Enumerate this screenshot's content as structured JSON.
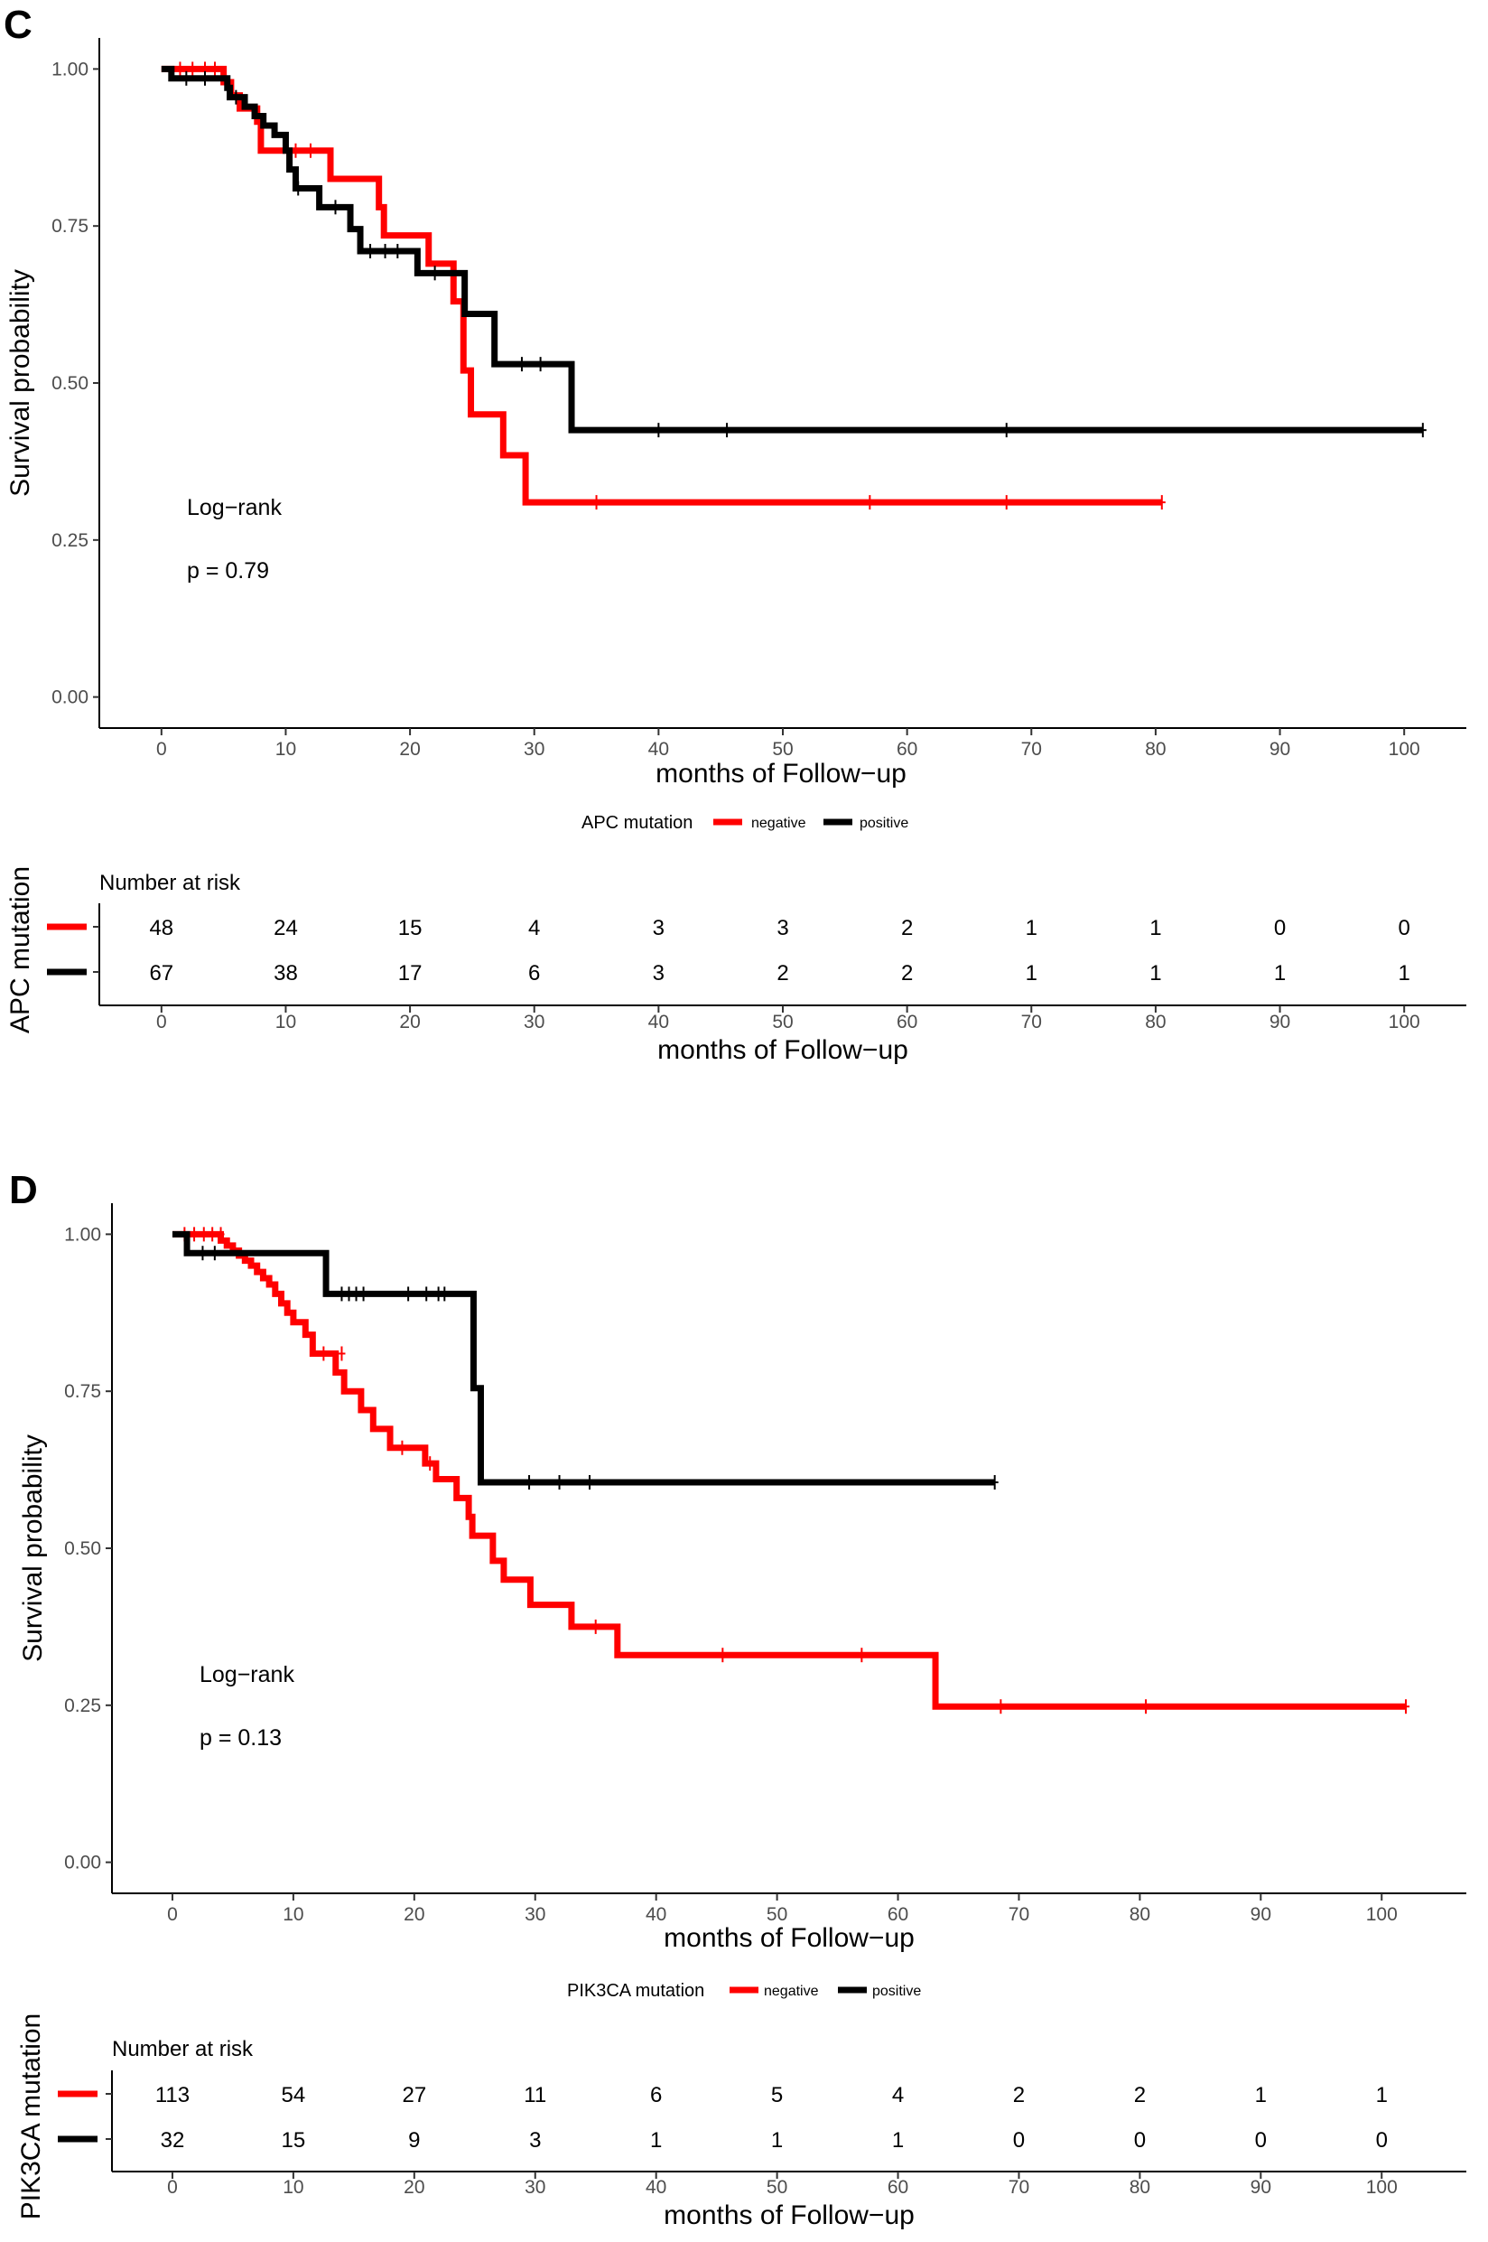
{
  "colors": {
    "negative": "#ff0000",
    "positive": "#000000",
    "axis": "#000000",
    "tick": "#4d4d4d"
  },
  "chart_data": [
    {
      "type": "line",
      "panel_label": "C",
      "ylabel": "Survival probability",
      "xlabel": "months of Follow−up",
      "xlim": [
        -5,
        105
      ],
      "ylim": [
        0,
        1
      ],
      "x_ticks": [
        "0",
        "10",
        "20",
        "30",
        "40",
        "50",
        "60",
        "70",
        "80",
        "90",
        "100"
      ],
      "y_ticks": [
        "0.00",
        "0.25",
        "0.50",
        "0.75",
        "1.00"
      ],
      "annotation": {
        "test": "Log−rank",
        "p": "p = 0.79"
      },
      "legend": {
        "title": "APC mutation",
        "items": [
          "negative",
          "positive"
        ]
      },
      "series": [
        {
          "name": "negative",
          "steps": [
            [
              0,
              1
            ],
            [
              5,
              0.979
            ],
            [
              5.6,
              0.958
            ],
            [
              6.3,
              0.937
            ],
            [
              7.7,
              0.916
            ],
            [
              8,
              0.87
            ],
            [
              13.6,
              0.825
            ],
            [
              17.5,
              0.78
            ],
            [
              17.9,
              0.735
            ],
            [
              21.5,
              0.69
            ],
            [
              23.5,
              0.63
            ],
            [
              24.3,
              0.52
            ],
            [
              24.9,
              0.45
            ],
            [
              27.5,
              0.385
            ],
            [
              29.3,
              0.31
            ],
            [
              80.5,
              0.31
            ]
          ],
          "censor": [
            [
              1.5,
              1
            ],
            [
              2.5,
              1
            ],
            [
              3.5,
              1
            ],
            [
              4.3,
              1
            ],
            [
              10.8,
              0.87
            ],
            [
              12,
              0.87
            ],
            [
              35,
              0.31
            ],
            [
              57,
              0.31
            ],
            [
              68,
              0.31
            ],
            [
              80.5,
              0.31
            ]
          ]
        },
        {
          "name": "positive",
          "steps": [
            [
              0,
              1
            ],
            [
              0.8,
              0.985
            ],
            [
              5.3,
              0.97
            ],
            [
              5.5,
              0.955
            ],
            [
              6.7,
              0.94
            ],
            [
              7.5,
              0.925
            ],
            [
              8.2,
              0.91
            ],
            [
              9.1,
              0.895
            ],
            [
              10,
              0.87
            ],
            [
              10.3,
              0.84
            ],
            [
              10.8,
              0.81
            ],
            [
              12.7,
              0.78
            ],
            [
              15.2,
              0.745
            ],
            [
              16,
              0.71
            ],
            [
              20.6,
              0.675
            ],
            [
              24.4,
              0.61
            ],
            [
              26.8,
              0.53
            ],
            [
              33,
              0.425
            ],
            [
              101.5,
              0.425
            ]
          ],
          "censor": [
            [
              2,
              0.985
            ],
            [
              3.5,
              0.985
            ],
            [
              6,
              0.955
            ],
            [
              11,
              0.81
            ],
            [
              14,
              0.78
            ],
            [
              16.8,
              0.71
            ],
            [
              18,
              0.71
            ],
            [
              19,
              0.71
            ],
            [
              22,
              0.675
            ],
            [
              29,
              0.53
            ],
            [
              30.5,
              0.53
            ],
            [
              40,
              0.425
            ],
            [
              45.5,
              0.425
            ],
            [
              68,
              0.425
            ],
            [
              101.5,
              0.425
            ]
          ]
        }
      ],
      "risk_table": {
        "title": "Number at risk",
        "ylabel": "APC mutation",
        "time_points": [
          0,
          10,
          20,
          30,
          40,
          50,
          60,
          70,
          80,
          90,
          100
        ],
        "rows": [
          {
            "name": "negative",
            "values": [
              "48",
              "24",
              "15",
              "4",
              "3",
              "3",
              "2",
              "1",
              "1",
              "0",
              "0"
            ]
          },
          {
            "name": "positive",
            "values": [
              "67",
              "38",
              "17",
              "6",
              "3",
              "2",
              "2",
              "1",
              "1",
              "1",
              "1"
            ]
          }
        ]
      }
    },
    {
      "type": "line",
      "panel_label": "D",
      "ylabel": "Survival probability",
      "xlabel": "months of Follow−up",
      "xlim": [
        -5,
        107
      ],
      "ylim": [
        0,
        1
      ],
      "x_ticks": [
        "0",
        "10",
        "20",
        "30",
        "40",
        "50",
        "60",
        "70",
        "80",
        "90",
        "100"
      ],
      "y_ticks": [
        "0.00",
        "0.25",
        "0.50",
        "0.75",
        "1.00"
      ],
      "annotation": {
        "test": "Log−rank",
        "p": "p = 0.13"
      },
      "legend": {
        "title": "PIK3CA mutation",
        "items": [
          "negative",
          "positive"
        ]
      },
      "series": [
        {
          "name": "negative",
          "steps": [
            [
              0,
              1
            ],
            [
              4,
              0.99
            ],
            [
              4.5,
              0.982
            ],
            [
              5,
              0.974
            ],
            [
              5.5,
              0.966
            ],
            [
              6,
              0.958
            ],
            [
              6.5,
              0.95
            ],
            [
              7,
              0.94
            ],
            [
              7.5,
              0.93
            ],
            [
              8,
              0.92
            ],
            [
              8.5,
              0.905
            ],
            [
              9,
              0.89
            ],
            [
              9.5,
              0.875
            ],
            [
              10,
              0.86
            ],
            [
              11,
              0.84
            ],
            [
              11.6,
              0.81
            ],
            [
              13.5,
              0.78
            ],
            [
              14.2,
              0.75
            ],
            [
              15.6,
              0.72
            ],
            [
              16.6,
              0.69
            ],
            [
              18,
              0.66
            ],
            [
              20.9,
              0.635
            ],
            [
              21.8,
              0.61
            ],
            [
              23.5,
              0.58
            ],
            [
              24.5,
              0.55
            ],
            [
              24.8,
              0.52
            ],
            [
              26.5,
              0.48
            ],
            [
              27.4,
              0.45
            ],
            [
              29.6,
              0.41
            ],
            [
              33,
              0.375
            ],
            [
              36.8,
              0.33
            ],
            [
              63.1,
              0.248
            ],
            [
              102,
              0.248
            ]
          ],
          "censor": [
            [
              1,
              1
            ],
            [
              1.8,
              1
            ],
            [
              2.6,
              1
            ],
            [
              3.3,
              1
            ],
            [
              4,
              1
            ],
            [
              12.5,
              0.81
            ],
            [
              14,
              0.81
            ],
            [
              19,
              0.66
            ],
            [
              21.3,
              0.635
            ],
            [
              35,
              0.375
            ],
            [
              45.5,
              0.33
            ],
            [
              57,
              0.33
            ],
            [
              68.5,
              0.248
            ],
            [
              80.5,
              0.248
            ],
            [
              102,
              0.248
            ]
          ]
        },
        {
          "name": "positive",
          "steps": [
            [
              0,
              1
            ],
            [
              1.2,
              0.97
            ],
            [
              12.7,
              0.905
            ],
            [
              24.9,
              0.755
            ],
            [
              25.5,
              0.605
            ],
            [
              68,
              0.605
            ]
          ],
          "censor": [
            [
              2.5,
              0.97
            ],
            [
              3.5,
              0.97
            ],
            [
              14,
              0.905
            ],
            [
              14.6,
              0.905
            ],
            [
              15.2,
              0.905
            ],
            [
              15.8,
              0.905
            ],
            [
              19.5,
              0.905
            ],
            [
              21,
              0.905
            ],
            [
              22,
              0.905
            ],
            [
              22.5,
              0.905
            ],
            [
              29.5,
              0.605
            ],
            [
              32,
              0.605
            ],
            [
              34.5,
              0.605
            ],
            [
              68,
              0.605
            ]
          ]
        }
      ],
      "risk_table": {
        "title": "Number at risk",
        "ylabel": "PIK3CA mutation",
        "time_points": [
          0,
          10,
          20,
          30,
          40,
          50,
          60,
          70,
          80,
          90,
          100
        ],
        "rows": [
          {
            "name": "negative",
            "values": [
              "113",
              "54",
              "27",
              "11",
              "6",
              "5",
              "4",
              "2",
              "2",
              "1",
              "1"
            ]
          },
          {
            "name": "positive",
            "values": [
              "32",
              "15",
              "9",
              "3",
              "1",
              "1",
              "1",
              "0",
              "0",
              "0",
              "0"
            ]
          }
        ]
      }
    }
  ]
}
